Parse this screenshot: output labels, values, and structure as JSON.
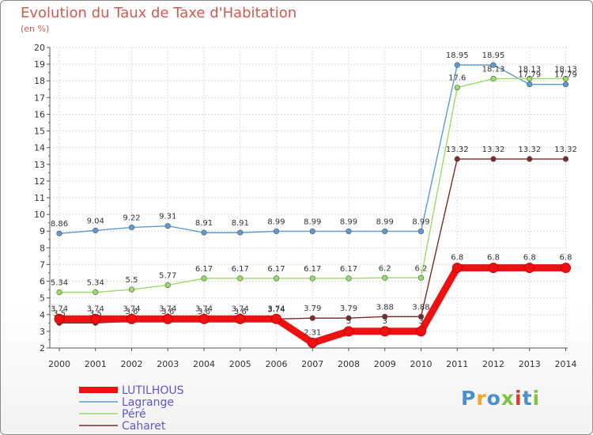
{
  "title": "Evolution du Taux de Taxe d'Habitation",
  "subtitle": "(en %)",
  "logo": {
    "text": "Proxiti",
    "colors": [
      "#4a8fd4",
      "#f5a623",
      "#4a8fd4",
      "#7fc241",
      "#e2362f",
      "#4a8fd4",
      "#7fc241"
    ]
  },
  "chart_data": {
    "type": "line",
    "x": [
      "2000",
      "2001",
      "2002",
      "2003",
      "2004",
      "2005",
      "2006",
      "2007",
      "2008",
      "2009",
      "2010",
      "2011",
      "2012",
      "2013",
      "2014"
    ],
    "ylim": [
      2,
      20
    ],
    "yticks": [
      "2",
      "3",
      "4",
      "5",
      "6",
      "7",
      "8",
      "9",
      "10",
      "11",
      "12",
      "13",
      "14",
      "15",
      "16",
      "17",
      "18",
      "19",
      "20"
    ],
    "grid": true,
    "legend_position": "bottom-left",
    "series": [
      {
        "name": "LUTILHOUS",
        "color": "#ee1111",
        "values": [
          3.74,
          3.74,
          3.74,
          3.74,
          3.74,
          3.74,
          3.74,
          2.31,
          3,
          3,
          3,
          6.8,
          6.8,
          6.8,
          6.8
        ],
        "labels": [
          "3.74",
          "3.74",
          "3.74",
          "3.74",
          "3.74",
          "3.74",
          "3.74",
          "2.31",
          "3",
          "3",
          "3",
          "6.8",
          "6.8",
          "6.8",
          "6.8"
        ]
      },
      {
        "name": "Lagrange",
        "color": "#5b9bd5",
        "values": [
          8.86,
          9.04,
          9.22,
          9.31,
          8.91,
          8.91,
          8.99,
          8.99,
          8.99,
          8.99,
          8.99,
          18.95,
          18.95,
          17.79,
          17.79
        ],
        "labels": [
          "8.86",
          "9.04",
          "9.22",
          "9.31",
          "8.91",
          "8.91",
          "8.99",
          "8.99",
          "8.99",
          "8.99",
          "8.99",
          "18.95",
          "18.95",
          "17.79",
          "17.79"
        ]
      },
      {
        "name": "Péré",
        "color": "#99dd66",
        "values": [
          5.34,
          5.34,
          5.5,
          5.77,
          6.17,
          6.17,
          6.17,
          6.17,
          6.17,
          6.2,
          6.2,
          17.6,
          18.13,
          18.13,
          18.13
        ],
        "labels": [
          "5.34",
          "5.34",
          "5.5",
          "5.77",
          "6.17",
          "6.17",
          "6.17",
          "6.17",
          "6.17",
          "6.2",
          "6.2",
          "17.6",
          "18.13",
          "18.13",
          "18.13"
        ]
      },
      {
        "name": "Caharet",
        "color": "#7a2a2a",
        "values": [
          3.5,
          3.5,
          3.6,
          3.6,
          3.6,
          3.6,
          3.74,
          3.79,
          3.79,
          3.88,
          3.88,
          13.32,
          13.32,
          13.32,
          13.32
        ],
        "labels": [
          "3.5",
          "3.5",
          "3.6",
          "3.6",
          "3.6",
          "3.6",
          "3.74",
          "3.79",
          "3.79",
          "3.88",
          "3.88",
          "13.32",
          "13.32",
          "13.32",
          "13.32"
        ]
      }
    ]
  }
}
